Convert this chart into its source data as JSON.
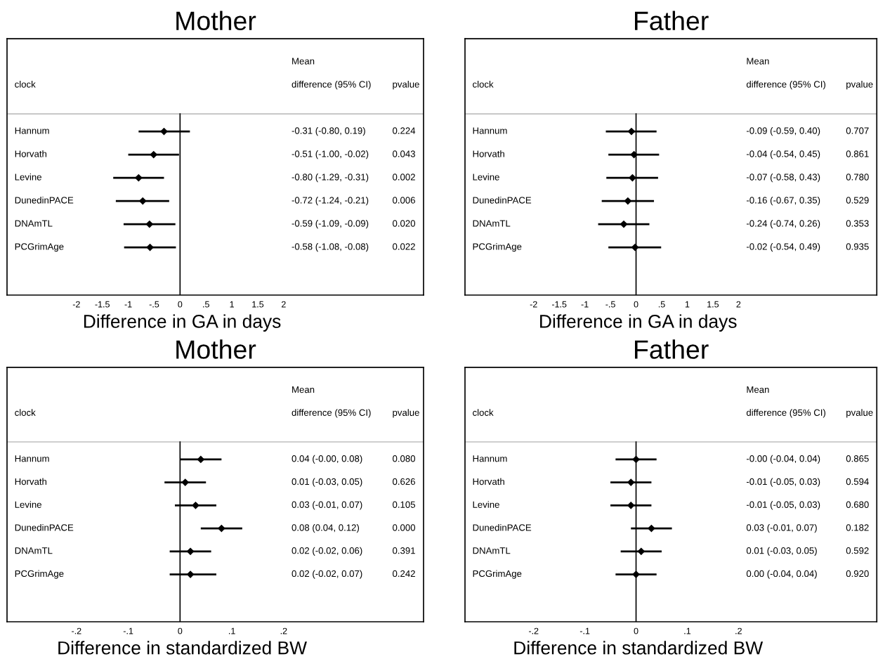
{
  "chart_data": [
    {
      "type": "scatter",
      "orientation": "horizontal",
      "title": "Mother",
      "xlabel": "Difference in GA in days",
      "marker": "diamond",
      "grid": false,
      "tick_labels": "x",
      "categories": [
        "Hannum",
        "Horvath",
        "Levine",
        "DunedinPACE",
        "DNAmTL",
        "PCGrimAge"
      ],
      "values": [
        -0.31,
        -0.51,
        -0.8,
        -0.72,
        -0.59,
        -0.58
      ],
      "errors": [
        [
          -0.8,
          0.19
        ],
        [
          -1.0,
          -0.02
        ],
        [
          -1.29,
          -0.31
        ],
        [
          -1.24,
          -0.21
        ],
        [
          -1.09,
          -0.09
        ],
        [
          -1.08,
          -0.08
        ]
      ],
      "color": "#000000",
      "xlim": [
        -3.34,
        4.7
      ],
      "xticks": [
        -2,
        -1.5,
        -1,
        {
          "value": -0.5,
          "label": "-.5"
        },
        0,
        {
          "value": 0.5,
          "label": ".5"
        },
        1,
        1.5,
        2
      ],
      "ref_lines": [
        {
          "axis": "x",
          "value": 0,
          "color": "#000000"
        }
      ],
      "annotations": [
        "clock",
        "Mean",
        "difference (95% CI)",
        "pvalue",
        "-0.31 (-0.80, 0.19)",
        "0.224",
        "-0.51 (-1.00, -0.02)",
        "0.043",
        "-0.80 (-1.29, -0.31)",
        "0.002",
        "-0.72 (-1.24, -0.21)",
        "0.006",
        "-0.59 (-1.09, -0.09)",
        "0.020",
        "-0.58 (-1.08, -0.08)",
        "0.022"
      ]
    },
    {
      "type": "scatter",
      "orientation": "horizontal",
      "title": "Father",
      "xlabel": "Difference in GA in days",
      "marker": "diamond",
      "grid": false,
      "tick_labels": "x",
      "categories": [
        "Hannum",
        "Horvath",
        "Levine",
        "DunedinPACE",
        "DNAmTL",
        "PCGrimAge"
      ],
      "values": [
        -0.09,
        -0.04,
        -0.07,
        -0.16,
        -0.24,
        -0.02
      ],
      "errors": [
        [
          -0.59,
          0.4
        ],
        [
          -0.54,
          0.45
        ],
        [
          -0.58,
          0.43
        ],
        [
          -0.67,
          0.35
        ],
        [
          -0.74,
          0.26
        ],
        [
          -0.54,
          0.49
        ]
      ],
      "color": "#000000",
      "xlim": [
        -3.34,
        4.7
      ],
      "xticks": [
        -2,
        -1.5,
        -1,
        {
          "value": -0.5,
          "label": "-.5"
        },
        0,
        {
          "value": 0.5,
          "label": ".5"
        },
        1,
        1.5,
        2
      ],
      "ref_lines": [
        {
          "axis": "x",
          "value": 0,
          "color": "#000000"
        }
      ],
      "annotations": [
        "clock",
        "Mean",
        "difference (95% CI)",
        "pvalue",
        "-0.09 (-0.59, 0.40)",
        "0.707",
        "-0.04 (-0.54, 0.45)",
        "0.861",
        "-0.07 (-0.58, 0.43)",
        "0.780",
        "-0.16 (-0.67, 0.35)",
        "0.529",
        "-0.24 (-0.74, 0.26)",
        "0.353",
        "-0.02 (-0.54, 0.49)",
        "0.935"
      ]
    },
    {
      "type": "scatter",
      "orientation": "horizontal",
      "title": "Mother",
      "xlabel": "Difference in standardized BW",
      "marker": "diamond",
      "grid": false,
      "tick_labels": "x",
      "categories": [
        "Hannum",
        "Horvath",
        "Levine",
        "DunedinPACE",
        "DNAmTL",
        "PCGrimAge"
      ],
      "values": [
        0.04,
        0.01,
        0.03,
        0.08,
        0.02,
        0.02
      ],
      "errors": [
        [
          -0.0,
          0.08
        ],
        [
          -0.03,
          0.05
        ],
        [
          -0.01,
          0.07
        ],
        [
          0.04,
          0.12
        ],
        [
          -0.02,
          0.06
        ],
        [
          -0.02,
          0.07
        ]
      ],
      "color": "#000000",
      "xlim": [
        -0.334,
        0.47
      ],
      "xticks": [
        {
          "value": -0.2,
          "label": "-.2"
        },
        {
          "value": -0.1,
          "label": "-.1"
        },
        0,
        {
          "value": 0.1,
          "label": ".1"
        },
        {
          "value": 0.2,
          "label": ".2"
        }
      ],
      "ref_lines": [
        {
          "axis": "x",
          "value": 0,
          "color": "#000000"
        }
      ],
      "annotations": [
        "clock",
        "Mean",
        "difference (95% CI)",
        "pvalue",
        "0.04 (-0.00, 0.08)",
        "0.080",
        "0.01 (-0.03, 0.05)",
        "0.626",
        "0.03 (-0.01, 0.07)",
        "0.105",
        "0.08 (0.04, 0.12)",
        "0.000",
        "0.02 (-0.02, 0.06)",
        "0.391",
        "0.02 (-0.02, 0.07)",
        "0.242"
      ]
    },
    {
      "type": "scatter",
      "orientation": "horizontal",
      "title": "Father",
      "xlabel": "Difference in standardized BW",
      "marker": "diamond",
      "grid": false,
      "tick_labels": "x",
      "categories": [
        "Hannum",
        "Horvath",
        "Levine",
        "DunedinPACE",
        "DNAmTL",
        "PCGrimAge"
      ],
      "values": [
        0.0,
        -0.01,
        -0.01,
        0.03,
        0.01,
        0.0
      ],
      "errors": [
        [
          -0.04,
          0.04
        ],
        [
          -0.05,
          0.03
        ],
        [
          -0.05,
          0.03
        ],
        [
          -0.01,
          0.07
        ],
        [
          -0.03,
          0.05
        ],
        [
          -0.04,
          0.04
        ]
      ],
      "color": "#000000",
      "xlim": [
        -0.334,
        0.47
      ],
      "xticks": [
        {
          "value": -0.2,
          "label": "-.2"
        },
        {
          "value": -0.1,
          "label": "-.1"
        },
        0,
        {
          "value": 0.1,
          "label": ".1"
        },
        {
          "value": 0.2,
          "label": ".2"
        }
      ],
      "ref_lines": [
        {
          "axis": "x",
          "value": 0,
          "color": "#000000"
        }
      ],
      "annotations": [
        "clock",
        "Mean",
        "difference (95% CI)",
        "pvalue",
        "-0.00 (-0.04, 0.04)",
        "0.865",
        "-0.01 (-0.05, 0.03)",
        "0.594",
        "-0.01 (-0.05, 0.03)",
        "0.680",
        "0.03 (-0.01, 0.07)",
        "0.182",
        "0.01 (-0.03, 0.05)",
        "0.592",
        "0.00 (-0.04, 0.04)",
        "0.920"
      ]
    }
  ]
}
